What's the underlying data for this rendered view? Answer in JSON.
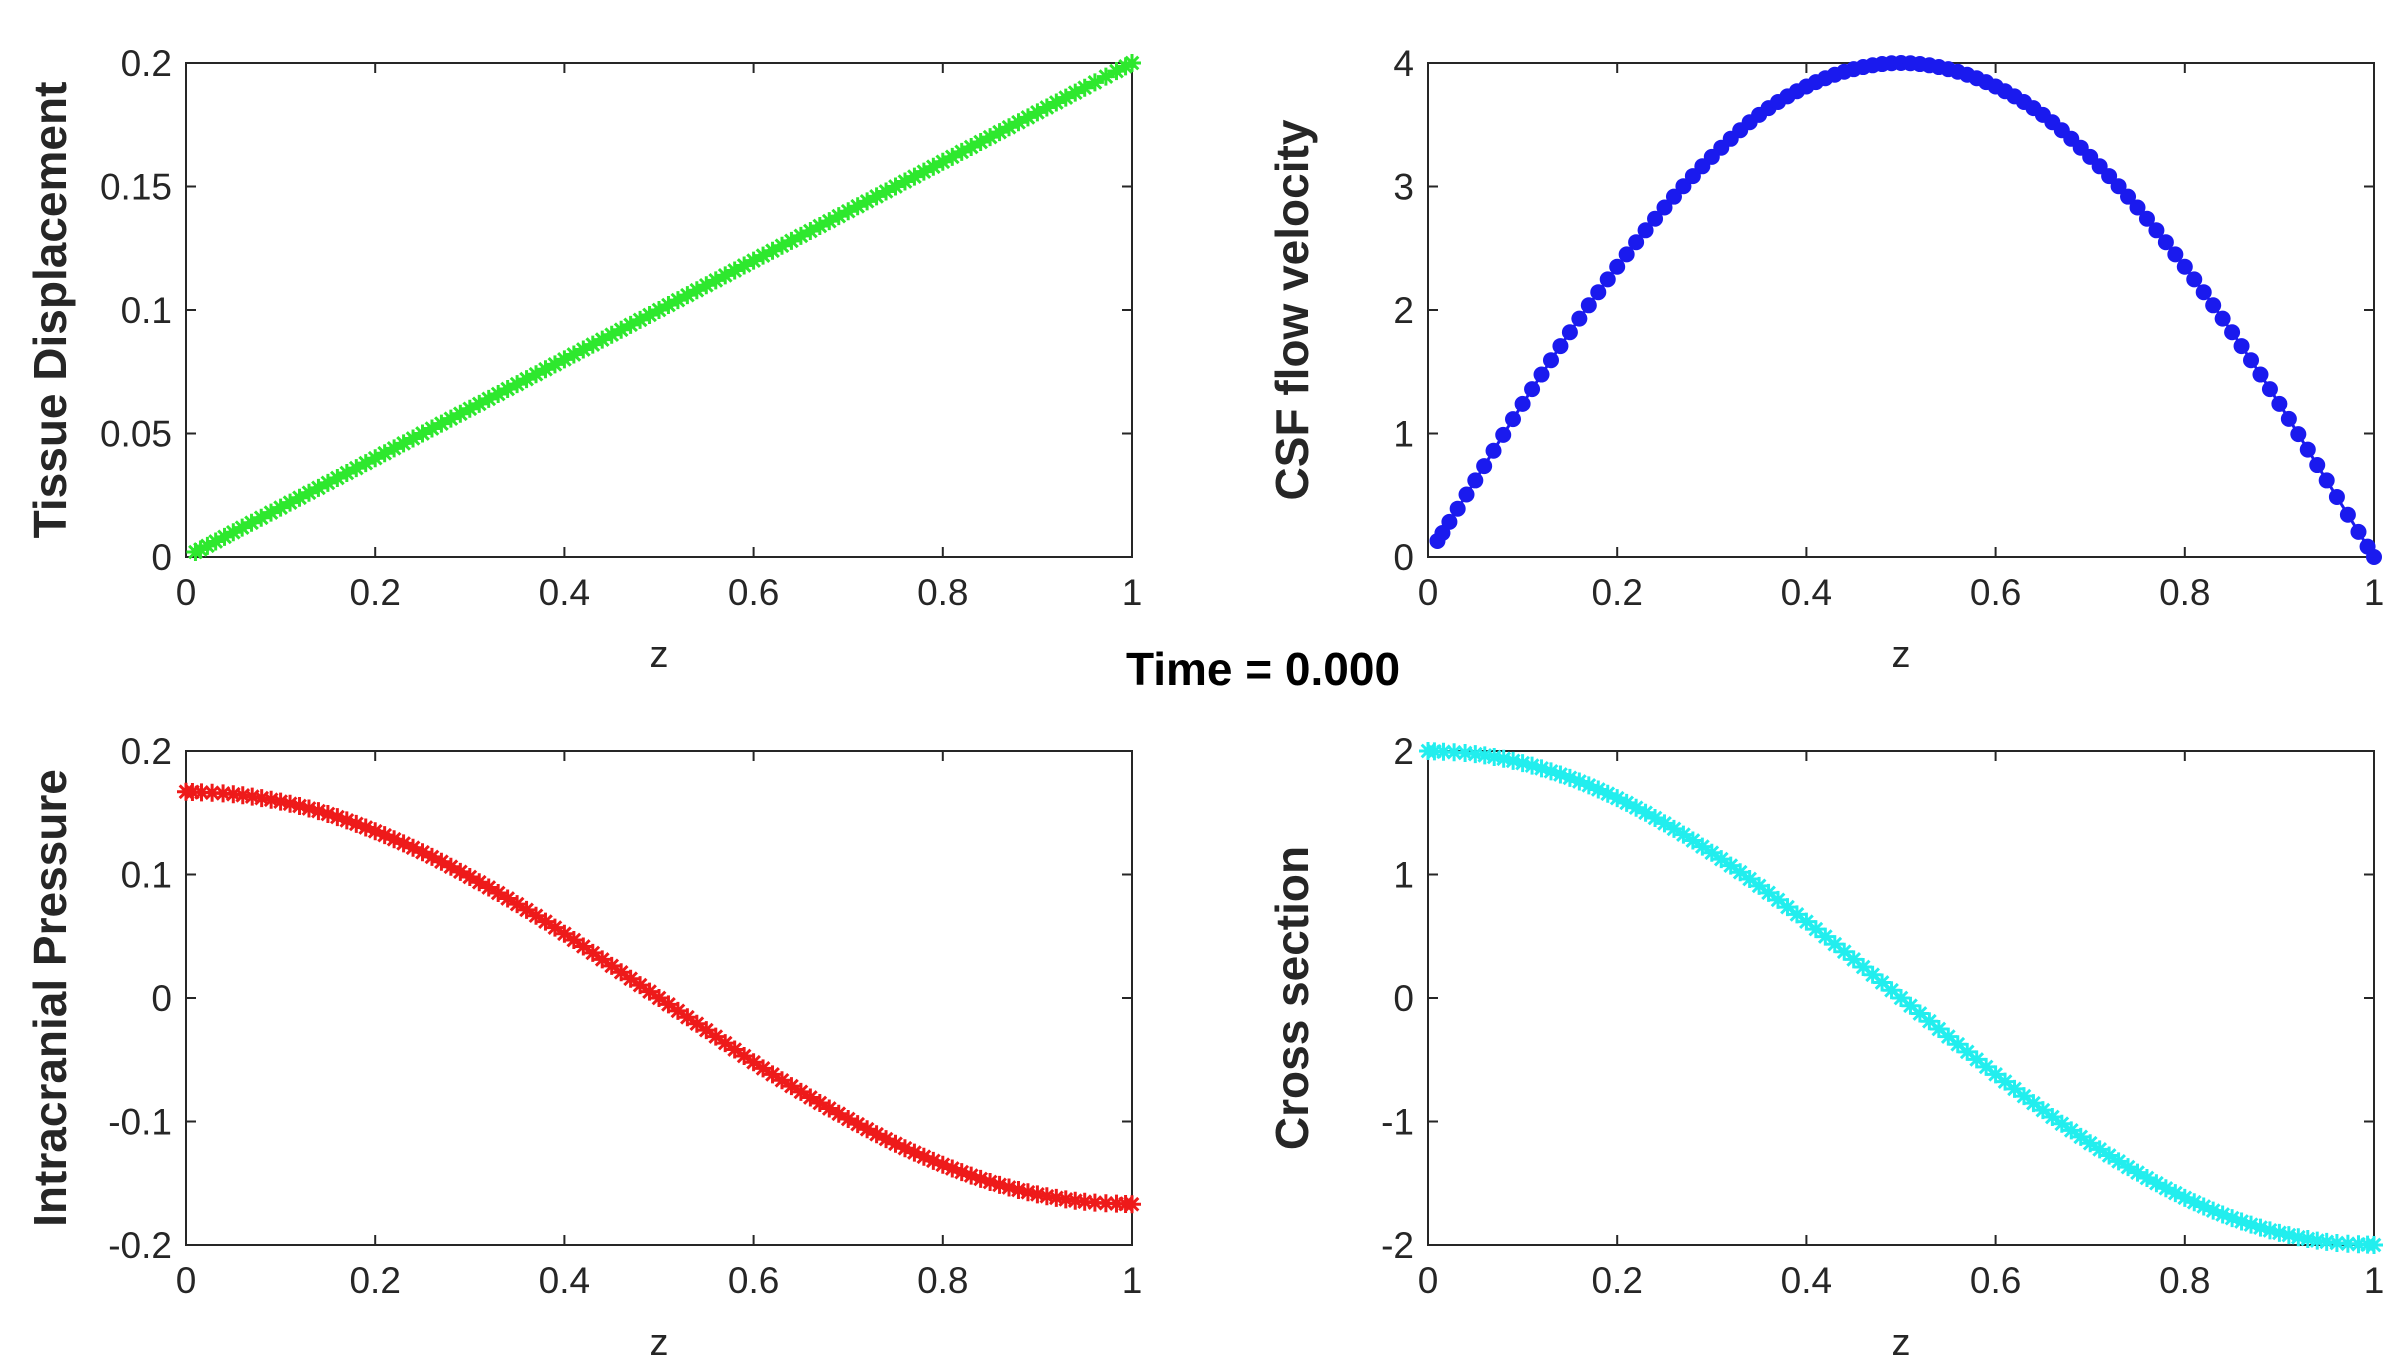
{
  "figure_title": "Time = 0.000",
  "chart_data": [
    {
      "type": "line",
      "marker": "asterisk",
      "color": "#2ee82e",
      "xlabel": "z",
      "ylabel": "Tissue Displacement",
      "xlim": [
        0,
        1
      ],
      "ylim": [
        0,
        0.2
      ],
      "xticks": [
        0,
        0.2,
        0.4,
        0.6,
        0.8,
        1
      ],
      "xtick_labels": [
        "0",
        "0.2",
        "0.4",
        "0.6",
        "0.8",
        "1"
      ],
      "yticks": [
        0,
        0.05,
        0.1,
        0.15,
        0.2
      ],
      "ytick_labels": [
        "0",
        "0.05",
        "0.1",
        "0.15",
        "0.2"
      ],
      "series": [
        {
          "x": [
            0.01,
            0.05,
            0.1,
            0.15,
            0.2,
            0.25,
            0.3,
            0.35,
            0.4,
            0.45,
            0.5,
            0.55,
            0.6,
            0.65,
            0.7,
            0.75,
            0.8,
            0.85,
            0.9,
            0.95,
            1.0
          ],
          "y": [
            0.002,
            0.01,
            0.02,
            0.03,
            0.04,
            0.05,
            0.06,
            0.07,
            0.08,
            0.09,
            0.1,
            0.11,
            0.12,
            0.13,
            0.14,
            0.15,
            0.16,
            0.17,
            0.18,
            0.19,
            0.2
          ]
        }
      ]
    },
    {
      "type": "line",
      "marker": "dot",
      "color": "#1a1aee",
      "xlabel": "z",
      "ylabel": "CSF flow velocity",
      "xlim": [
        0,
        1
      ],
      "ylim": [
        0,
        4
      ],
      "xticks": [
        0,
        0.2,
        0.4,
        0.6,
        0.8,
        1
      ],
      "xtick_labels": [
        "0",
        "0.2",
        "0.4",
        "0.6",
        "0.8",
        "1"
      ],
      "yticks": [
        0,
        1,
        2,
        3,
        4
      ],
      "ytick_labels": [
        "0",
        "1",
        "2",
        "3",
        "4"
      ],
      "series": [
        {
          "x": [
            0.01,
            0.05,
            0.1,
            0.15,
            0.2,
            0.25,
            0.3,
            0.35,
            0.4,
            0.45,
            0.5,
            0.55,
            0.6,
            0.65,
            0.7,
            0.75,
            0.8,
            0.85,
            0.9,
            0.95,
            1.0
          ],
          "y": [
            0.13,
            0.62,
            1.24,
            1.82,
            2.35,
            2.83,
            3.24,
            3.58,
            3.81,
            3.95,
            4.0,
            3.95,
            3.81,
            3.58,
            3.24,
            2.83,
            2.35,
            1.82,
            1.24,
            0.62,
            0.0
          ]
        }
      ]
    },
    {
      "type": "line",
      "marker": "asterisk",
      "color": "#ee1a1a",
      "xlabel": "z",
      "ylabel": "Intracranial Pressure",
      "xlim": [
        0,
        1
      ],
      "ylim": [
        -0.2,
        0.2
      ],
      "xticks": [
        0,
        0.2,
        0.4,
        0.6,
        0.8,
        1
      ],
      "xtick_labels": [
        "0",
        "0.2",
        "0.4",
        "0.6",
        "0.8",
        "1"
      ],
      "yticks": [
        -0.2,
        -0.1,
        0,
        0.1,
        0.2
      ],
      "ytick_labels": [
        "-0.2",
        "-0.1",
        "0",
        "0.1",
        "0.2"
      ],
      "series": [
        {
          "x": [
            0.0,
            0.05,
            0.1,
            0.15,
            0.2,
            0.25,
            0.3,
            0.35,
            0.4,
            0.45,
            0.5,
            0.55,
            0.6,
            0.65,
            0.7,
            0.75,
            0.8,
            0.85,
            0.9,
            0.95,
            1.0
          ],
          "y": [
            0.167,
            0.165,
            0.159,
            0.149,
            0.135,
            0.118,
            0.098,
            0.076,
            0.052,
            0.026,
            0.0,
            -0.026,
            -0.052,
            -0.076,
            -0.098,
            -0.118,
            -0.135,
            -0.149,
            -0.159,
            -0.165,
            -0.167
          ]
        }
      ]
    },
    {
      "type": "line",
      "marker": "asterisk",
      "color": "#22eeee",
      "xlabel": "z",
      "ylabel": "Cross section",
      "xlim": [
        0,
        1
      ],
      "ylim": [
        -2,
        2
      ],
      "xticks": [
        0,
        0.2,
        0.4,
        0.6,
        0.8,
        1
      ],
      "xtick_labels": [
        "0",
        "0.2",
        "0.4",
        "0.6",
        "0.8",
        "1"
      ],
      "yticks": [
        -2,
        -1,
        0,
        1,
        2
      ],
      "ytick_labels": [
        "-2",
        "-1",
        "0",
        "1",
        "2"
      ],
      "series": [
        {
          "x": [
            0.0,
            0.05,
            0.1,
            0.15,
            0.2,
            0.25,
            0.3,
            0.35,
            0.4,
            0.45,
            0.5,
            0.55,
            0.6,
            0.65,
            0.7,
            0.75,
            0.8,
            0.85,
            0.9,
            0.95,
            1.0
          ],
          "y": [
            2.0,
            1.975,
            1.902,
            1.782,
            1.618,
            1.414,
            1.176,
            0.908,
            0.618,
            0.313,
            0.0,
            -0.313,
            -0.618,
            -0.908,
            -1.176,
            -1.414,
            -1.618,
            -1.782,
            -1.902,
            -1.975,
            -2.0
          ]
        }
      ]
    }
  ]
}
